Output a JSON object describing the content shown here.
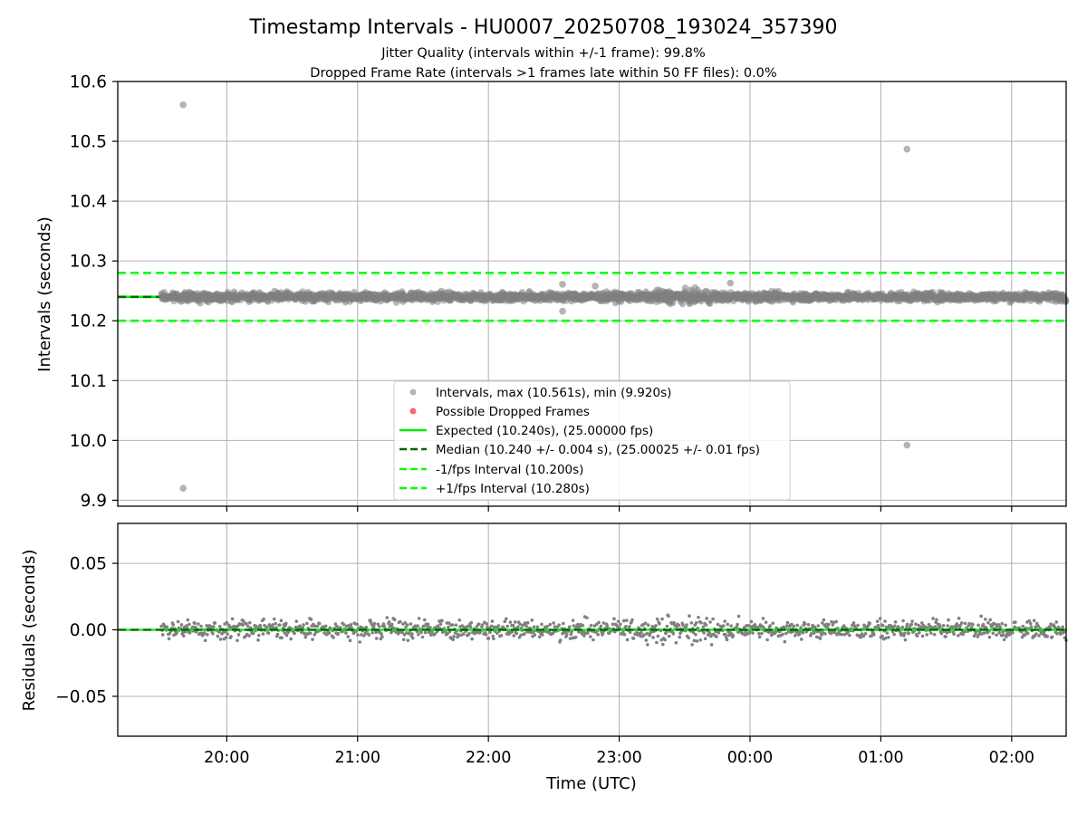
{
  "title": "Timestamp Intervals - HU0007_20250708_193024_357390",
  "subtitle_1": "Jitter Quality (intervals within +/-1 frame): 99.8%",
  "subtitle_2": "Dropped Frame Rate (intervals >1 frames late within 50 FF files): 0.0%",
  "colors": {
    "points": "#808080",
    "dropped": "#ff0000",
    "expected": "#00ee00",
    "median": "#006400",
    "bound": "#00ff00",
    "grid": "#b0b0b0"
  },
  "chart_data": [
    {
      "type": "scatter",
      "panel": "intervals",
      "ylabel": "Intervals (seconds)",
      "ylim": [
        9.89,
        10.6
      ],
      "yticks": [
        "9.9",
        "10.0",
        "10.1",
        "10.2",
        "10.3",
        "10.4",
        "10.5",
        "10.6"
      ],
      "ytick_values": [
        9.9,
        10.0,
        10.1,
        10.2,
        10.3,
        10.4,
        10.5,
        10.6
      ],
      "x_range_hours": [
        "19:10",
        "02:25"
      ],
      "data_start": "19:30",
      "data_end": "02:25",
      "band_center": 10.24,
      "band_spread": 0.007,
      "legend_position": "lower center",
      "lines": [
        {
          "name": "Expected (10.240s), (25.00000 fps)",
          "y": 10.24,
          "style": "solid",
          "color_key": "expected"
        },
        {
          "name": "Median (10.240 +/- 0.004 s), (25.00025 +/- 0.01 fps)",
          "y": 10.24,
          "style": "dashed",
          "color_key": "median"
        },
        {
          "name": "-1/fps Interval (10.200s)",
          "y": 10.2,
          "style": "dashed",
          "color_key": "bound"
        },
        {
          "name": "+1/fps Interval (10.280s)",
          "y": 10.28,
          "style": "dashed",
          "color_key": "bound"
        }
      ],
      "scatter_series": [
        {
          "name": "Intervals, max (10.561s), min (9.920s)",
          "color_key": "points"
        },
        {
          "name": "Possible Dropped Frames",
          "color_key": "dropped"
        }
      ],
      "outliers": [
        {
          "time": "19:40",
          "y": 10.561
        },
        {
          "time": "19:40",
          "y": 9.92
        },
        {
          "time": "01:12",
          "y": 10.487
        },
        {
          "time": "01:12",
          "y": 9.992
        },
        {
          "time": "22:34",
          "y": 10.261
        },
        {
          "time": "22:34",
          "y": 10.216
        },
        {
          "time": "22:49",
          "y": 10.258
        },
        {
          "time": "23:51",
          "y": 10.263
        }
      ],
      "dropped_frames": []
    },
    {
      "type": "scatter",
      "panel": "residuals",
      "xlabel": "Time (UTC)",
      "ylabel": "Residuals (seconds)",
      "ylim": [
        -0.08,
        0.08
      ],
      "yticks": [
        "−0.05",
        "0.00",
        "0.05"
      ],
      "ytick_values": [
        -0.05,
        0.0,
        0.05
      ],
      "xticks": [
        "20:00",
        "21:00",
        "22:00",
        "23:00",
        "00:00",
        "01:00",
        "02:00"
      ],
      "xtick_times": [
        "20:00",
        "21:00",
        "22:00",
        "23:00",
        "00:00",
        "01:00",
        "02:00"
      ],
      "spread": 0.007,
      "zero_line": {
        "y": 0.0,
        "style": "dashed",
        "color_key": "median"
      }
    }
  ]
}
